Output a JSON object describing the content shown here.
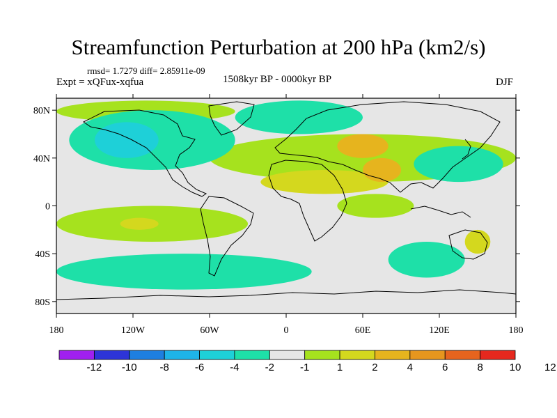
{
  "chart_data": {
    "type": "contour-map",
    "title": "Streamfunction Perturbation at 200 hPa (km2/s)",
    "stats_text": "rmsd= 1.7279 diff= 2.85911e-09",
    "experiment_text": "Expt = xQFux-xqfua",
    "period_text": "1508kyr BP - 0000kyr BP",
    "season": "DJF",
    "x_ticks": [
      {
        "lon": -180,
        "label": "180"
      },
      {
        "lon": -120,
        "label": "120W"
      },
      {
        "lon": -60,
        "label": "60W"
      },
      {
        "lon": 0,
        "label": "0"
      },
      {
        "lon": 60,
        "label": "60E"
      },
      {
        "lon": 120,
        "label": "120E"
      },
      {
        "lon": 180,
        "label": "180"
      }
    ],
    "y_ticks": [
      {
        "lat": 80,
        "label": "80N"
      },
      {
        "lat": 40,
        "label": "40N"
      },
      {
        "lat": 0,
        "label": "0"
      },
      {
        "lat": -40,
        "label": "40S"
      },
      {
        "lat": -80,
        "label": "80S"
      }
    ],
    "xlim": [
      -180,
      180
    ],
    "ylim": [
      -90,
      90
    ],
    "colorbar": {
      "colors": [
        "#a020f0",
        "#2d34d8",
        "#1e7fe0",
        "#1eb4e8",
        "#1ed0d8",
        "#1ee0a8",
        "#e6e6e6",
        "#a6e21e",
        "#d4d81e",
        "#e6b41e",
        "#e6961e",
        "#e6641e",
        "#e6281e"
      ],
      "labels": [
        "-12",
        "-10",
        "-8",
        "-6",
        "-4",
        "-2",
        "-1",
        "1",
        "2",
        "4",
        "6",
        "8",
        "10",
        "12"
      ],
      "levels": [
        -12,
        -10,
        -8,
        -6,
        -4,
        -2,
        -1,
        1,
        2,
        4,
        6,
        8,
        10,
        12
      ]
    },
    "field_regions": [
      {
        "level_index": 7,
        "lon": [
          -180,
          -40
        ],
        "lat": [
          70,
          88
        ]
      },
      {
        "level_index": 7,
        "lon": [
          -60,
          180
        ],
        "lat": [
          20,
          60
        ]
      },
      {
        "level_index": 8,
        "lon": [
          -20,
          80
        ],
        "lat": [
          10,
          30
        ]
      },
      {
        "level_index": 9,
        "lon": [
          40,
          80
        ],
        "lat": [
          40,
          60
        ]
      },
      {
        "level_index": 9,
        "lon": [
          60,
          90
        ],
        "lat": [
          20,
          40
        ]
      },
      {
        "level_index": 5,
        "lon": [
          -170,
          -40
        ],
        "lat": [
          30,
          80
        ]
      },
      {
        "level_index": 4,
        "lon": [
          -150,
          -100
        ],
        "lat": [
          40,
          70
        ]
      },
      {
        "level_index": 5,
        "lon": [
          -40,
          60
        ],
        "lat": [
          60,
          88
        ]
      },
      {
        "level_index": 5,
        "lon": [
          100,
          170
        ],
        "lat": [
          20,
          50
        ]
      },
      {
        "level_index": 7,
        "lon": [
          -180,
          -30
        ],
        "lat": [
          -30,
          0
        ]
      },
      {
        "level_index": 8,
        "lon": [
          -130,
          -100
        ],
        "lat": [
          -20,
          -10
        ]
      },
      {
        "level_index": 7,
        "lon": [
          40,
          100
        ],
        "lat": [
          -10,
          10
        ]
      },
      {
        "level_index": 5,
        "lon": [
          -180,
          20
        ],
        "lat": [
          -70,
          -40
        ]
      },
      {
        "level_index": 5,
        "lon": [
          80,
          140
        ],
        "lat": [
          -60,
          -30
        ]
      },
      {
        "level_index": 8,
        "lon": [
          140,
          160
        ],
        "lat": [
          -40,
          -20
        ]
      }
    ]
  }
}
